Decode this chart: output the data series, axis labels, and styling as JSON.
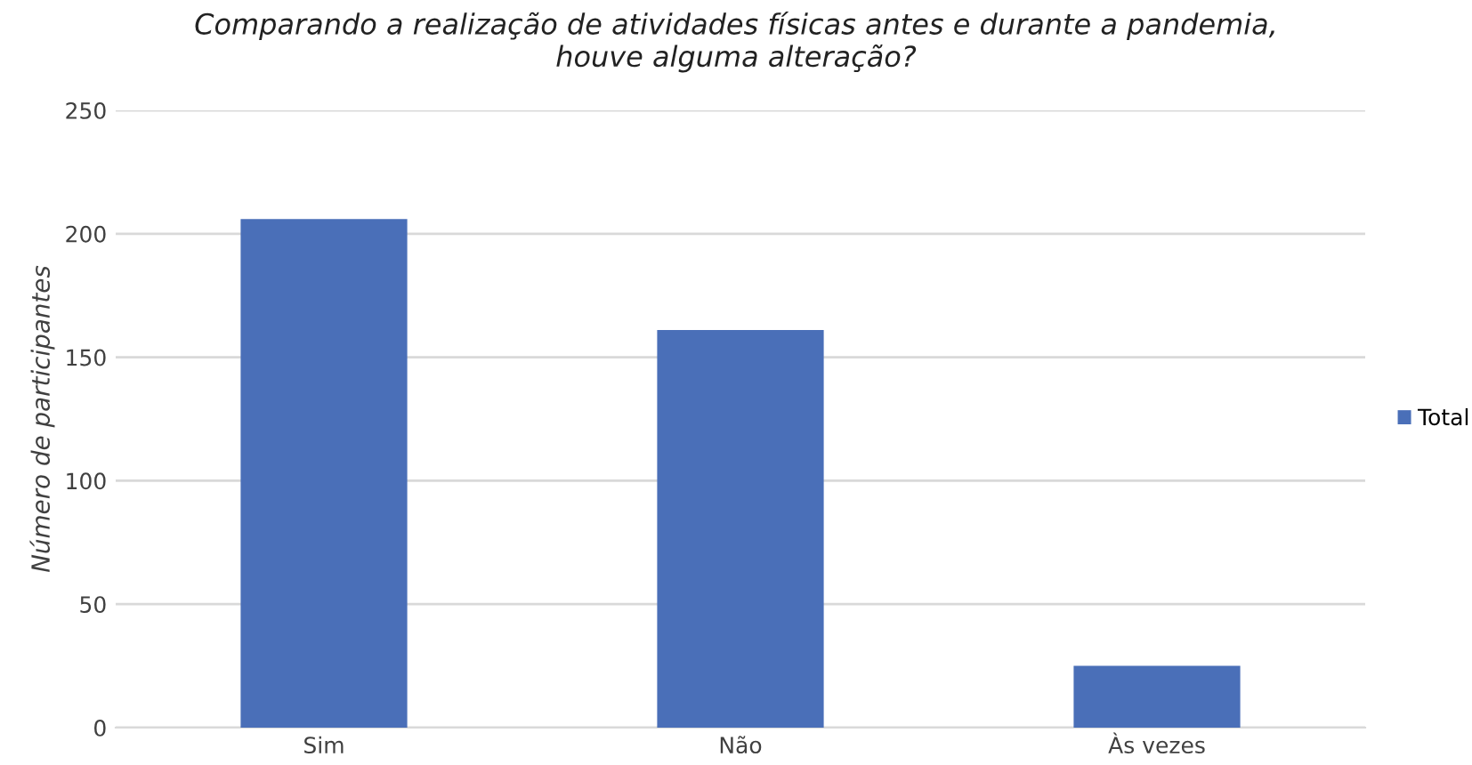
{
  "chart_data": {
    "type": "bar",
    "title": "Comparando a realização de atividades físicas antes e durante a pandemia,\nhouve alguma alteração?",
    "ylabel": "Número de participantes",
    "categories": [
      "Sim",
      "Não",
      "Às vezes"
    ],
    "series": [
      {
        "name": "Total",
        "color": "#4a6fb8",
        "values": [
          206,
          161,
          25
        ]
      }
    ],
    "ylim": [
      0,
      250
    ],
    "yticks": [
      0,
      50,
      100,
      150,
      200,
      250
    ],
    "grid": "y",
    "legend": "right"
  }
}
